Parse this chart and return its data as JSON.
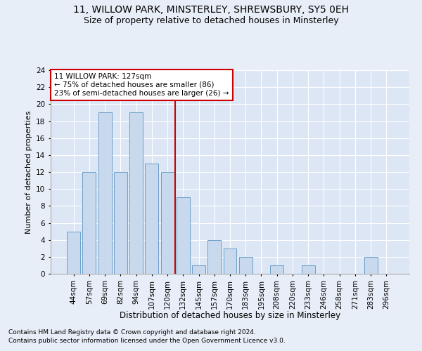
{
  "title1": "11, WILLOW PARK, MINSTERLEY, SHREWSBURY, SY5 0EH",
  "title2": "Size of property relative to detached houses in Minsterley",
  "xlabel": "Distribution of detached houses by size in Minsterley",
  "ylabel": "Number of detached properties",
  "categories": [
    "44sqm",
    "57sqm",
    "69sqm",
    "82sqm",
    "94sqm",
    "107sqm",
    "120sqm",
    "132sqm",
    "145sqm",
    "157sqm",
    "170sqm",
    "183sqm",
    "195sqm",
    "208sqm",
    "220sqm",
    "233sqm",
    "246sqm",
    "258sqm",
    "271sqm",
    "283sqm",
    "296sqm"
  ],
  "values": [
    5,
    12,
    19,
    12,
    19,
    13,
    12,
    9,
    1,
    4,
    3,
    2,
    0,
    1,
    0,
    1,
    0,
    0,
    0,
    2,
    0
  ],
  "bar_color": "#c8d9ee",
  "bar_edge_color": "#6b9ec8",
  "annotation_title": "11 WILLOW PARK: 127sqm",
  "annotation_line1": "← 75% of detached houses are smaller (86)",
  "annotation_line2": "23% of semi-detached houses are larger (26) →",
  "annotation_box_color": "#ffffff",
  "annotation_box_edge": "#cc0000",
  "red_line_color": "#cc0000",
  "ylim": [
    0,
    24
  ],
  "yticks": [
    0,
    2,
    4,
    6,
    8,
    10,
    12,
    14,
    16,
    18,
    20,
    22,
    24
  ],
  "footer1": "Contains HM Land Registry data © Crown copyright and database right 2024.",
  "footer2": "Contains public sector information licensed under the Open Government Licence v3.0.",
  "bg_color": "#e8eef7",
  "plot_bg_color": "#dce6f5",
  "title1_fontsize": 10,
  "title2_fontsize": 9,
  "xlabel_fontsize": 8.5,
  "ylabel_fontsize": 8,
  "tick_fontsize": 7.5,
  "footer_fontsize": 6.5,
  "annot_fontsize": 7.5
}
